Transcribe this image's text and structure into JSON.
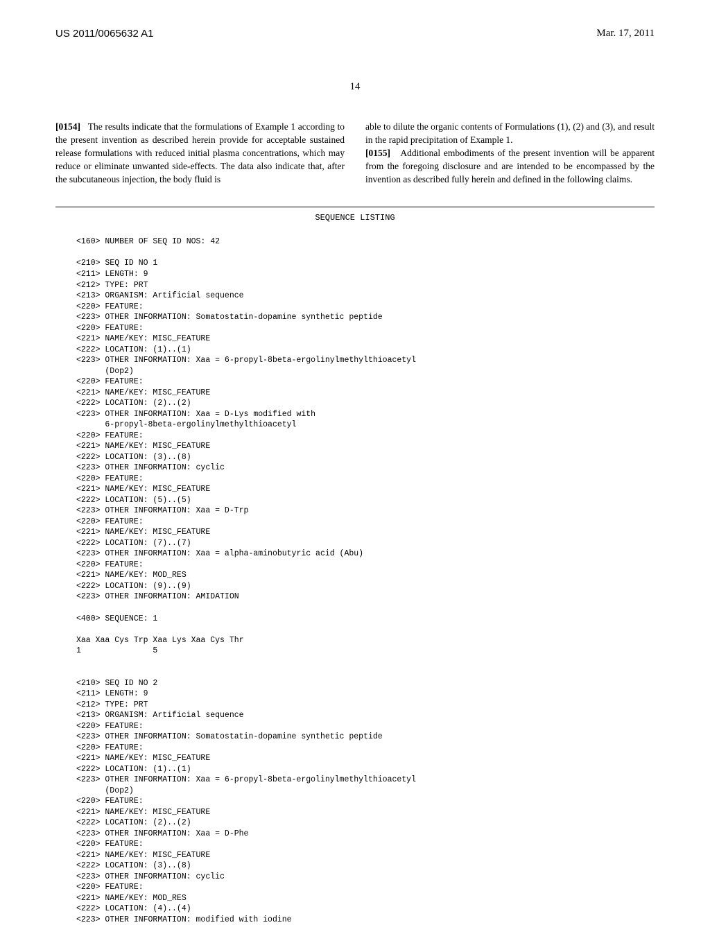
{
  "header": {
    "doc_number": "US 2011/0065632 A1",
    "date": "Mar. 17, 2011"
  },
  "page_number": "14",
  "paragraphs": {
    "left": {
      "num": "[0154]",
      "text": "The results indicate that the formulations of Example 1 according to the present invention as described herein provide for acceptable sustained release formulations with reduced initial plasma concentrations, which may reduce or eliminate unwanted side-effects. The data also indicate that, after the subcutaneous injection, the body fluid is"
    },
    "right": {
      "text1": "able to dilute the organic contents of Formulations (1), (2) and (3), and result in the rapid precipitation of Example 1.",
      "num": "[0155]",
      "text2": "Additional embodiments of the present invention will be apparent from the foregoing disclosure and are intended to be encompassed by the invention as described fully herein and defined in the following claims."
    }
  },
  "seq_title": "SEQUENCE LISTING",
  "sequence": "<160> NUMBER OF SEQ ID NOS: 42\n\n<210> SEQ ID NO 1\n<211> LENGTH: 9\n<212> TYPE: PRT\n<213> ORGANISM: Artificial sequence\n<220> FEATURE:\n<223> OTHER INFORMATION: Somatostatin-dopamine synthetic peptide\n<220> FEATURE:\n<221> NAME/KEY: MISC_FEATURE\n<222> LOCATION: (1)..(1)\n<223> OTHER INFORMATION: Xaa = 6-propyl-8beta-ergolinylmethylthioacetyl\n      (Dop2)\n<220> FEATURE:\n<221> NAME/KEY: MISC_FEATURE\n<222> LOCATION: (2)..(2)\n<223> OTHER INFORMATION: Xaa = D-Lys modified with\n      6-propyl-8beta-ergolinylmethylthioacetyl\n<220> FEATURE:\n<221> NAME/KEY: MISC_FEATURE\n<222> LOCATION: (3)..(8)\n<223> OTHER INFORMATION: cyclic\n<220> FEATURE:\n<221> NAME/KEY: MISC_FEATURE\n<222> LOCATION: (5)..(5)\n<223> OTHER INFORMATION: Xaa = D-Trp\n<220> FEATURE:\n<221> NAME/KEY: MISC_FEATURE\n<222> LOCATION: (7)..(7)\n<223> OTHER INFORMATION: Xaa = alpha-aminobutyric acid (Abu)\n<220> FEATURE:\n<221> NAME/KEY: MOD_RES\n<222> LOCATION: (9)..(9)\n<223> OTHER INFORMATION: AMIDATION\n\n<400> SEQUENCE: 1\n\nXaa Xaa Cys Trp Xaa Lys Xaa Cys Thr\n1               5\n\n\n<210> SEQ ID NO 2\n<211> LENGTH: 9\n<212> TYPE: PRT\n<213> ORGANISM: Artificial sequence\n<220> FEATURE:\n<223> OTHER INFORMATION: Somatostatin-dopamine synthetic peptide\n<220> FEATURE:\n<221> NAME/KEY: MISC_FEATURE\n<222> LOCATION: (1)..(1)\n<223> OTHER INFORMATION: Xaa = 6-propyl-8beta-ergolinylmethylthioacetyl\n      (Dop2)\n<220> FEATURE:\n<221> NAME/KEY: MISC_FEATURE\n<222> LOCATION: (2)..(2)\n<223> OTHER INFORMATION: Xaa = D-Phe\n<220> FEATURE:\n<221> NAME/KEY: MISC_FEATURE\n<222> LOCATION: (3)..(8)\n<223> OTHER INFORMATION: cyclic\n<220> FEATURE:\n<221> NAME/KEY: MOD_RES\n<222> LOCATION: (4)..(4)\n<223> OTHER INFORMATION: modified with iodine"
}
